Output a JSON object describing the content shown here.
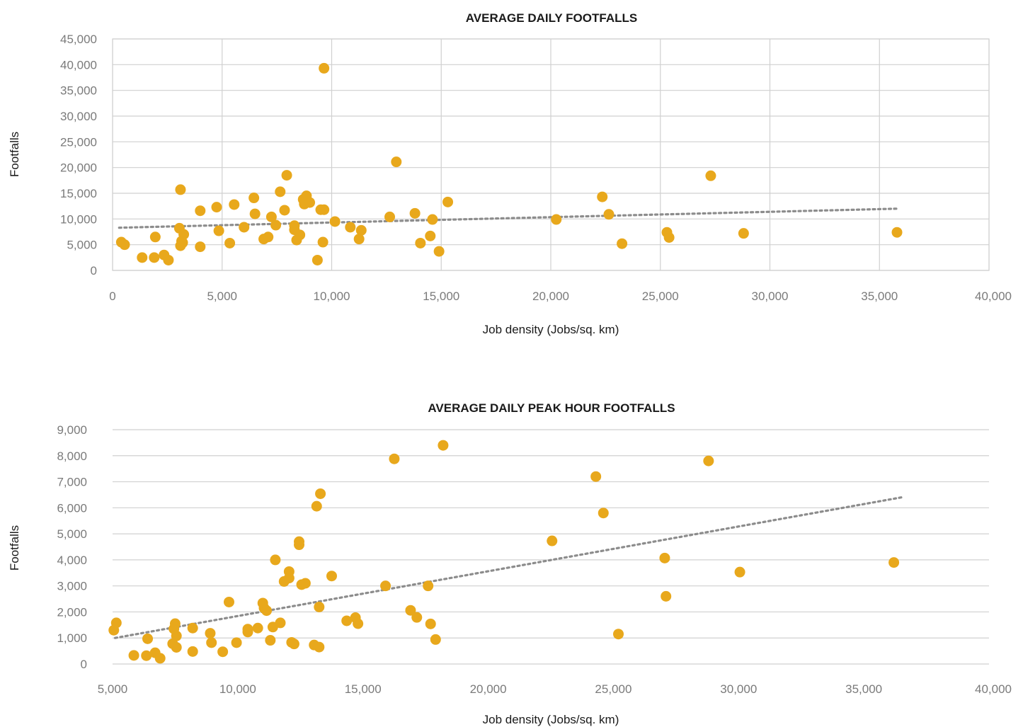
{
  "colors": {
    "point": "#E8A81C",
    "trend": "#8C8C8C",
    "grid": "#D0D0D0",
    "tick_text": "#7a7a7a"
  },
  "chart_data": [
    {
      "type": "scatter",
      "title": "AVERAGE DAILY FOOTFALLS",
      "xlabel": "Job density (Jobs/sq. km)",
      "ylabel": "Footfalls",
      "xlim": [
        0,
        40000
      ],
      "ylim": [
        0,
        45000
      ],
      "x_ticks": [
        0,
        5000,
        10000,
        15000,
        20000,
        25000,
        30000,
        35000,
        40000
      ],
      "x_tick_labels": [
        "0",
        "5,000",
        "10,000",
        "15,000",
        "20,000",
        "25,000",
        "30,000",
        "35,000",
        "40,000"
      ],
      "y_ticks": [
        0,
        5000,
        10000,
        15000,
        20000,
        25000,
        30000,
        35000,
        40000,
        45000
      ],
      "y_tick_labels": [
        "0",
        "5,000",
        "10,000",
        "15,000",
        "20,000",
        "25,000",
        "30,000",
        "35,000",
        "40,000",
        "45,000"
      ],
      "grid": {
        "horizontal": true,
        "vertical": true,
        "border": true
      },
      "trendline": {
        "x": [
          300,
          35800
        ],
        "y": [
          8300,
          12000
        ]
      },
      "points": [
        [
          400,
          5500
        ],
        [
          550,
          5000
        ],
        [
          1350,
          2500
        ],
        [
          1900,
          2500
        ],
        [
          1950,
          6500
        ],
        [
          2350,
          3000
        ],
        [
          2550,
          2000
        ],
        [
          3050,
          8200
        ],
        [
          3100,
          15700
        ],
        [
          3100,
          4800
        ],
        [
          3150,
          5700
        ],
        [
          3200,
          5400
        ],
        [
          3250,
          7000
        ],
        [
          4000,
          11600
        ],
        [
          4000,
          4600
        ],
        [
          4750,
          12300
        ],
        [
          4850,
          7700
        ],
        [
          5350,
          5300
        ],
        [
          5550,
          12800
        ],
        [
          6000,
          8400
        ],
        [
          6450,
          14100
        ],
        [
          6500,
          11000
        ],
        [
          6900,
          6100
        ],
        [
          7100,
          6500
        ],
        [
          7250,
          10400
        ],
        [
          7450,
          8800
        ],
        [
          7650,
          15300
        ],
        [
          7850,
          11700
        ],
        [
          7950,
          18500
        ],
        [
          8300,
          8700
        ],
        [
          8300,
          7900
        ],
        [
          8400,
          5900
        ],
        [
          8550,
          6900
        ],
        [
          8700,
          13800
        ],
        [
          8750,
          12900
        ],
        [
          8850,
          14500
        ],
        [
          9000,
          13200
        ],
        [
          9350,
          2000
        ],
        [
          9500,
          11800
        ],
        [
          9600,
          5500
        ],
        [
          9650,
          39300
        ],
        [
          9650,
          11800
        ],
        [
          10150,
          9500
        ],
        [
          10850,
          8400
        ],
        [
          11250,
          6100
        ],
        [
          11350,
          7800
        ],
        [
          12650,
          10400
        ],
        [
          12950,
          21100
        ],
        [
          13800,
          11100
        ],
        [
          14050,
          5300
        ],
        [
          14500,
          6700
        ],
        [
          14600,
          9900
        ],
        [
          14900,
          3700
        ],
        [
          15300,
          13300
        ],
        [
          20250,
          9900
        ],
        [
          22350,
          14300
        ],
        [
          22650,
          10900
        ],
        [
          23250,
          5200
        ],
        [
          25300,
          7400
        ],
        [
          25400,
          6400
        ],
        [
          27300,
          18400
        ],
        [
          28800,
          7200
        ],
        [
          35800,
          7400
        ]
      ]
    },
    {
      "type": "scatter",
      "title": "AVERAGE DAILY PEAK HOUR FOOTFALLS",
      "xlabel": "Job density (Jobs/sq. km)",
      "ylabel": "Footfalls",
      "xlim": [
        5000,
        40000
      ],
      "ylim": [
        0,
        9000
      ],
      "x_ticks": [
        5000,
        10000,
        15000,
        20000,
        25000,
        30000,
        35000,
        40000
      ],
      "x_tick_labels": [
        "5,000",
        "10,000",
        "15,000",
        "20,000",
        "25,000",
        "30,000",
        "35,000",
        "40,000"
      ],
      "y_ticks": [
        0,
        1000,
        2000,
        3000,
        4000,
        5000,
        6000,
        7000,
        8000,
        9000
      ],
      "y_tick_labels": [
        "0",
        "1,000",
        "2,000",
        "3,000",
        "4,000",
        "5,000",
        "6,000",
        "7,000",
        "8,000",
        "9,000"
      ],
      "grid": {
        "horizontal": true,
        "vertical": false,
        "border": false
      },
      "trendline": {
        "x": [
          5100,
          36500
        ],
        "y": [
          1000,
          6400
        ]
      },
      "points": [
        [
          5050,
          1300
        ],
        [
          5150,
          1580
        ],
        [
          5850,
          330
        ],
        [
          6350,
          320
        ],
        [
          6400,
          970
        ],
        [
          6700,
          430
        ],
        [
          6900,
          220
        ],
        [
          7400,
          780
        ],
        [
          7450,
          1350
        ],
        [
          7500,
          1550
        ],
        [
          7550,
          1080
        ],
        [
          7550,
          640
        ],
        [
          8200,
          480
        ],
        [
          8200,
          1380
        ],
        [
          8900,
          1180
        ],
        [
          8950,
          820
        ],
        [
          9400,
          470
        ],
        [
          9650,
          2380
        ],
        [
          9950,
          820
        ],
        [
          10400,
          1230
        ],
        [
          10400,
          1340
        ],
        [
          10800,
          1380
        ],
        [
          11000,
          2340
        ],
        [
          11050,
          2150
        ],
        [
          11150,
          2050
        ],
        [
          11300,
          910
        ],
        [
          11400,
          1420
        ],
        [
          11500,
          4000
        ],
        [
          11700,
          1580
        ],
        [
          11850,
          3170
        ],
        [
          12050,
          3550
        ],
        [
          12050,
          3300
        ],
        [
          12150,
          830
        ],
        [
          12250,
          770
        ],
        [
          12450,
          4700
        ],
        [
          12450,
          4580
        ],
        [
          12550,
          3050
        ],
        [
          12700,
          3100
        ],
        [
          13050,
          730
        ],
        [
          13150,
          6060
        ],
        [
          13250,
          2190
        ],
        [
          13250,
          650
        ],
        [
          13300,
          6540
        ],
        [
          13750,
          3380
        ],
        [
          14350,
          1660
        ],
        [
          14700,
          1780
        ],
        [
          14800,
          1550
        ],
        [
          15900,
          3000
        ],
        [
          16250,
          7880
        ],
        [
          16900,
          2060
        ],
        [
          17150,
          1790
        ],
        [
          17600,
          3000
        ],
        [
          17700,
          1540
        ],
        [
          17900,
          940
        ],
        [
          18200,
          8400
        ],
        [
          22550,
          4730
        ],
        [
          24300,
          7200
        ],
        [
          24600,
          5800
        ],
        [
          25200,
          1150
        ],
        [
          27050,
          4070
        ],
        [
          27100,
          2600
        ],
        [
          28800,
          7800
        ],
        [
          30050,
          3530
        ],
        [
          36200,
          3900
        ]
      ]
    }
  ]
}
